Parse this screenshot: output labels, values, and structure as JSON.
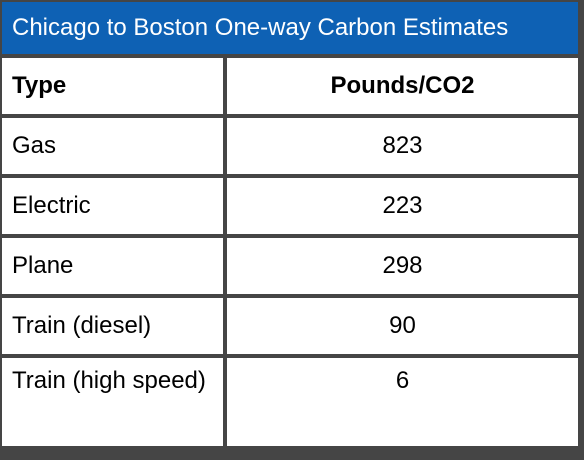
{
  "title": "Chicago to Boston One-way Carbon Estimates",
  "table": {
    "headers": [
      "Type",
      "Pounds/CO2"
    ],
    "rows": [
      {
        "type": "Gas",
        "value": "823"
      },
      {
        "type": "Electric",
        "value": "223"
      },
      {
        "type": "Plane",
        "value": "298"
      },
      {
        "type": "Train (diesel)",
        "value": "90"
      },
      {
        "type": "Train (high speed)",
        "value": "6"
      }
    ]
  },
  "colors": {
    "title_bg": "#0e61b4",
    "border": "#454545"
  }
}
